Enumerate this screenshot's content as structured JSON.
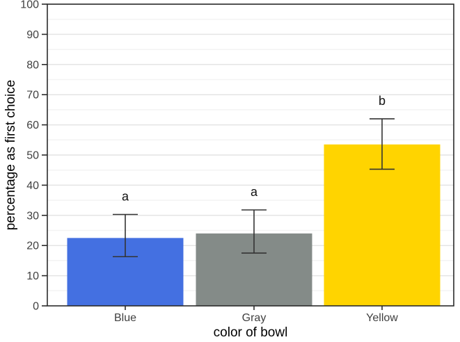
{
  "chart_data": {
    "type": "bar",
    "title": "",
    "xlabel": "color of bowl",
    "ylabel": "percentage as first choice",
    "categories": [
      "Blue",
      "Gray",
      "Yellow"
    ],
    "values": [
      22.5,
      24,
      53.5
    ],
    "error_bars": {
      "lower": [
        16.3,
        17.5,
        45.3
      ],
      "upper": [
        30.3,
        31.8,
        62
      ]
    },
    "significance_letters": [
      "a",
      "a",
      "b"
    ],
    "bar_colors": [
      "#4470E1",
      "#848B88",
      "#FFD400"
    ],
    "ylim": [
      0,
      100
    ],
    "yticks": [
      0,
      10,
      20,
      30,
      40,
      50,
      60,
      70,
      80,
      90,
      100
    ],
    "ytick_labels": [
      "0",
      "10",
      "20",
      "30",
      "40",
      "50",
      "60",
      "70",
      "80",
      "90",
      "100"
    ],
    "grid": {
      "on": true,
      "major_step": 10,
      "minor_step": 5,
      "major_color": "#e4e4e4",
      "minor_color": "#f3f3f3"
    },
    "legend": "none",
    "panel_border_color": "#2b2b2b",
    "axis_color": "#2b2b2b",
    "errorbar_color": "#333333",
    "tick_label_color": "#404040",
    "letter_color": "#111111",
    "background": "#ffffff"
  }
}
